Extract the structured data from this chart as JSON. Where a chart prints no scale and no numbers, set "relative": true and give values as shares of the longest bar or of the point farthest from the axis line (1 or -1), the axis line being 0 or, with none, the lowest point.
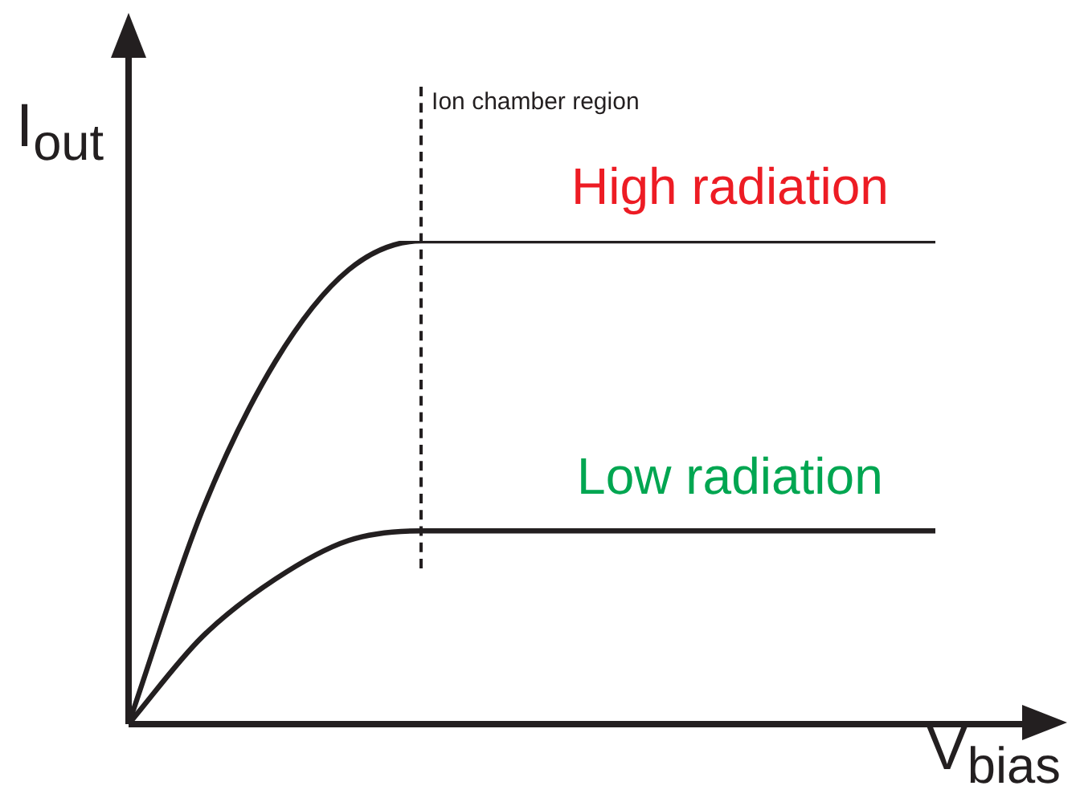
{
  "chart_data": {
    "type": "line",
    "relative": true,
    "xlabel": "V$_{bias}$",
    "ylabel": "I$_{out}$",
    "categories": [
      null,
      null,
      null,
      null,
      null,
      null,
      null,
      null,
      null,
      null,
      null,
      null
    ],
    "series": [
      {
        "name": "High radiation",
        "color": "#231f20",
        "values": [
          0,
          0.44,
          0.75,
          0.94,
          1,
          1,
          1,
          1,
          1,
          1,
          1,
          1
        ]
      },
      {
        "name": "Low radiation",
        "color": "#231f20",
        "values": [
          0,
          0.18,
          0.3,
          0.38,
          0.4,
          0.4,
          0.4,
          0.4,
          0.4,
          0.4,
          0.4,
          0.4
        ]
      }
    ],
    "annotations": [
      "Ion chamber region"
    ],
    "legend": false,
    "marker": "none",
    "line_style": "solid"
  }
}
